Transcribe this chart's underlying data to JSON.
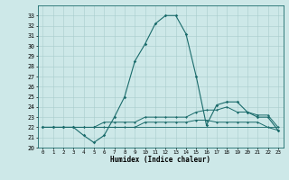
{
  "title": "",
  "xlabel": "Humidex (Indice chaleur)",
  "ylabel": "",
  "background_color": "#cde8e8",
  "grid_color": "#a8cccc",
  "line_color": "#1a6b6b",
  "ylim": [
    20,
    34
  ],
  "xlim": [
    -0.5,
    23.5
  ],
  "yticks": [
    20,
    21,
    22,
    23,
    24,
    25,
    26,
    27,
    28,
    29,
    30,
    31,
    32,
    33
  ],
  "xticks": [
    0,
    1,
    2,
    3,
    4,
    5,
    6,
    7,
    8,
    9,
    10,
    11,
    12,
    13,
    14,
    15,
    16,
    17,
    18,
    19,
    20,
    21,
    22,
    23
  ],
  "series": [
    {
      "x": [
        0,
        1,
        2,
        3,
        4,
        5,
        6,
        7,
        8,
        9,
        10,
        11,
        12,
        13,
        14,
        15,
        16,
        17,
        18,
        19,
        20,
        21,
        22,
        23
      ],
      "y": [
        22,
        22,
        22,
        22,
        21.2,
        20.5,
        21.2,
        23,
        25,
        28.5,
        30.2,
        32.2,
        33,
        33,
        31.2,
        27,
        22.2,
        24.2,
        24.5,
        24.5,
        23.5,
        23,
        23,
        21.7
      ]
    },
    {
      "x": [
        0,
        1,
        2,
        3,
        4,
        5,
        6,
        7,
        8,
        9,
        10,
        11,
        12,
        13,
        14,
        15,
        16,
        17,
        18,
        19,
        20,
        21,
        22,
        23
      ],
      "y": [
        22,
        22,
        22,
        22,
        22,
        22,
        22.5,
        22.5,
        22.5,
        22.5,
        23,
        23,
        23,
        23,
        23,
        23.5,
        23.7,
        23.7,
        24,
        23.5,
        23.5,
        23.2,
        23.2,
        22
      ]
    },
    {
      "x": [
        0,
        1,
        2,
        3,
        4,
        5,
        6,
        7,
        8,
        9,
        10,
        11,
        12,
        13,
        14,
        15,
        16,
        17,
        18,
        19,
        20,
        21,
        22,
        23
      ],
      "y": [
        22,
        22,
        22,
        22,
        22,
        22,
        22,
        22,
        22,
        22,
        22.5,
        22.5,
        22.5,
        22.5,
        22.5,
        22.7,
        22.7,
        22.5,
        22.5,
        22.5,
        22.5,
        22.5,
        22,
        21.7
      ]
    },
    {
      "x": [
        0,
        1,
        2,
        3,
        4,
        5,
        6,
        7,
        8,
        9,
        10,
        11,
        12,
        13,
        14,
        15,
        16,
        17,
        18,
        19,
        20,
        21,
        22,
        23
      ],
      "y": [
        22,
        22,
        22,
        22,
        22,
        22,
        22,
        22,
        22,
        22,
        22,
        22,
        22,
        22,
        22,
        22,
        22,
        22,
        22,
        22,
        22,
        22,
        22,
        22
      ]
    }
  ],
  "marker_series": [
    0,
    1,
    2
  ],
  "figsize": [
    3.2,
    2.0
  ],
  "dpi": 100
}
